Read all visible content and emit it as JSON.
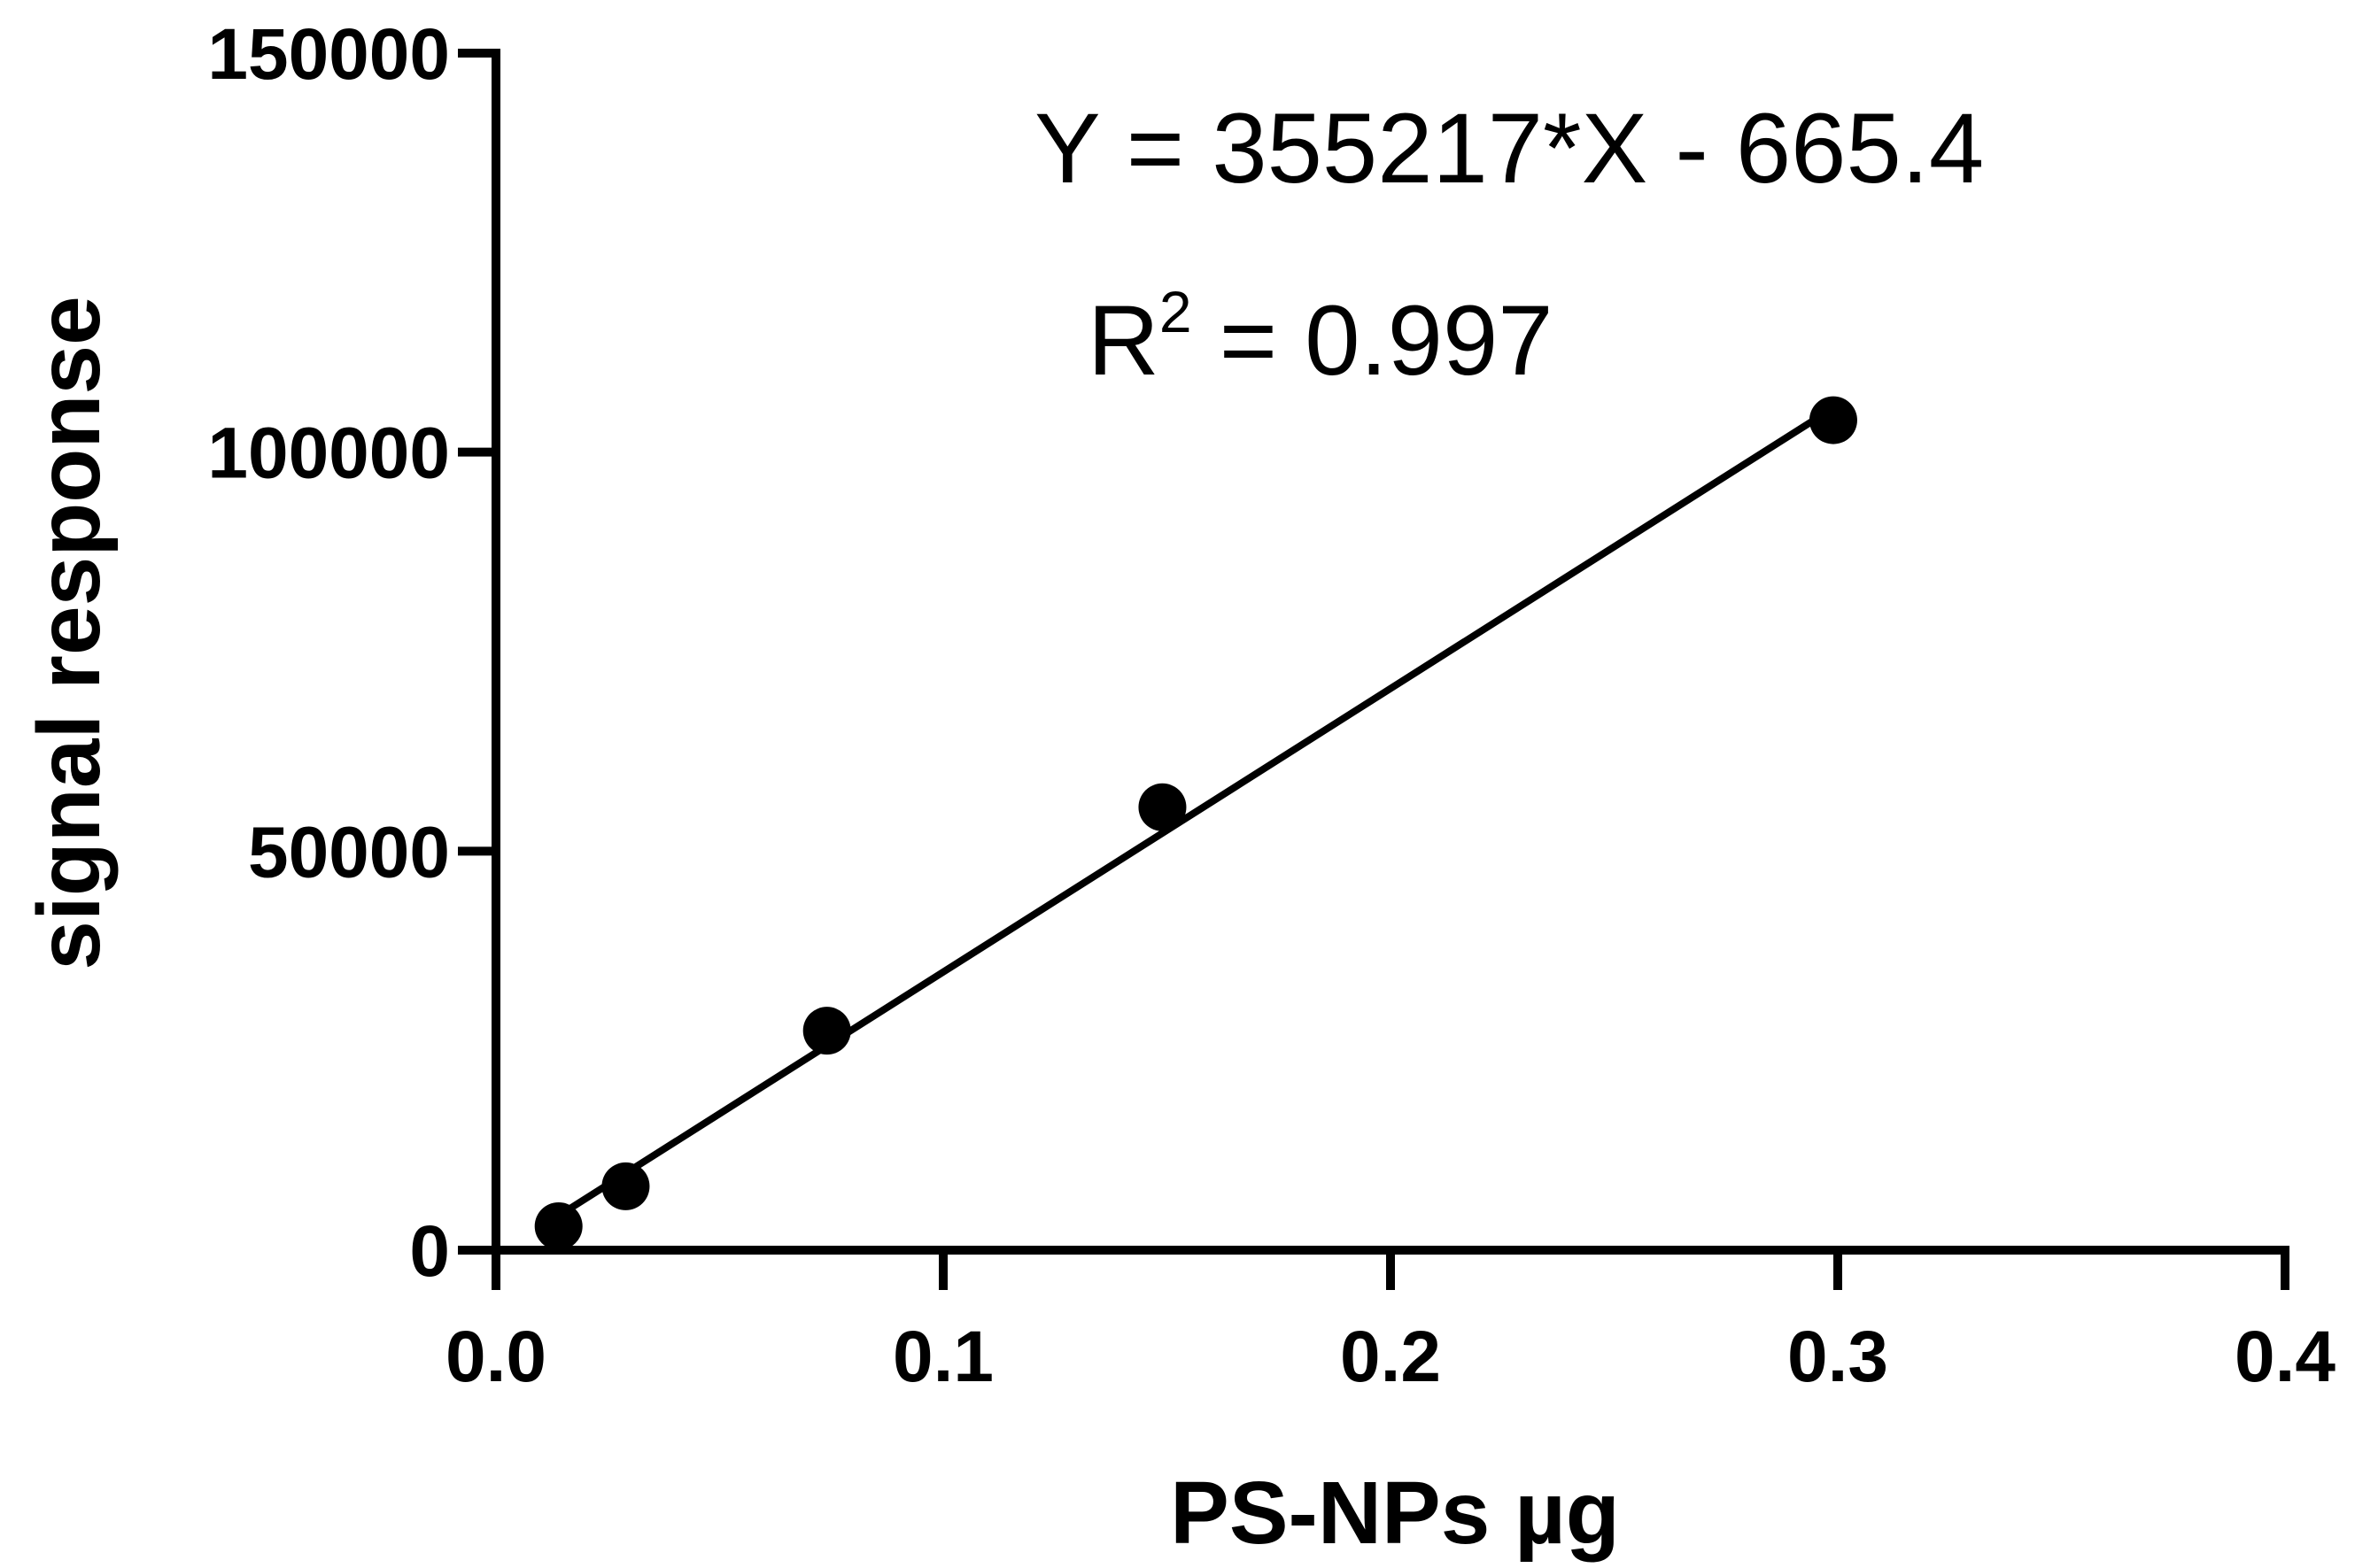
{
  "chart_data": {
    "type": "scatter",
    "xlabel": "PS-NPs µg",
    "ylabel": "signal response",
    "xlim": [
      0,
      0.4
    ],
    "ylim": [
      0,
      150000
    ],
    "x_ticks": [
      0.0,
      0.1,
      0.2,
      0.3,
      0.4
    ],
    "x_tick_labels": [
      "0.0",
      "0.1",
      "0.2",
      "0.3",
      "0.4"
    ],
    "y_ticks": [
      0,
      50000,
      100000,
      150000
    ],
    "y_tick_labels": [
      "0",
      "50000",
      "100000",
      "150000"
    ],
    "grid": false,
    "series": [
      {
        "points": [
          {
            "x": 0.014,
            "y": 3000
          },
          {
            "x": 0.029,
            "y": 8000
          },
          {
            "x": 0.074,
            "y": 27500
          },
          {
            "x": 0.149,
            "y": 55500
          },
          {
            "x": 0.299,
            "y": 104000
          }
        ],
        "color": "#000000"
      }
    ],
    "fit_line": {
      "slope": 355217,
      "intercept": -665.4,
      "x_range": [
        0.014,
        0.299
      ]
    },
    "annotations": {
      "equation": "Y = 355217*X - 665.4",
      "r2_label": "R",
      "r2_sup": "2",
      "r2_value": " = 0.997"
    }
  }
}
